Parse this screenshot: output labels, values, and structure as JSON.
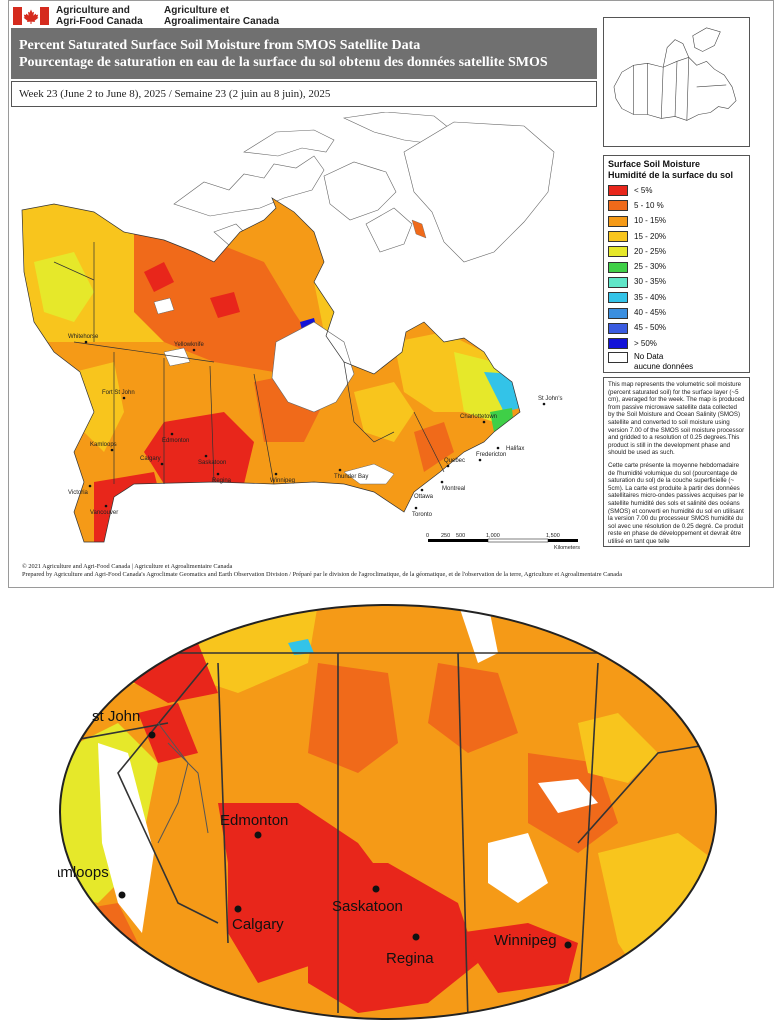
{
  "header": {
    "dept_en_1": "Agriculture and",
    "dept_en_2": "Agri-Food Canada",
    "dept_fr_1": "Agriculture et",
    "dept_fr_2": "Agroalimentaire Canada",
    "title_en": "Percent Saturated Surface Soil Moisture from SMOS Satellite Data",
    "title_fr": "Pourcentage de saturation en eau de la surface du sol obtenu des données satellite SMOS",
    "week": "Week 23 (June 2  to June 8), 2025 / Semaine 23 (2 juin au 8 juin), 2025",
    "flag_color": "#d52b1e",
    "title_bg": "#707070"
  },
  "legend": {
    "title_en": "Surface Soil Moisture",
    "title_fr": "Humidité de la surface du sol",
    "items": [
      {
        "label": "< 5%",
        "color": "#e8261b"
      },
      {
        "label": "5 - 10 %",
        "color": "#f06a1a"
      },
      {
        "label": "10 - 15%",
        "color": "#f59a17"
      },
      {
        "label": "15 - 20%",
        "color": "#f8c51d"
      },
      {
        "label": "20 - 25%",
        "color": "#e6e82a"
      },
      {
        "label": "25 - 30%",
        "color": "#3fcf47"
      },
      {
        "label": "30 - 35%",
        "color": "#5fe6c8"
      },
      {
        "label": "35 - 40%",
        "color": "#33c3e8"
      },
      {
        "label": "40 - 45%",
        "color": "#3b8fe0"
      },
      {
        "label": "45 - 50%",
        "color": "#3a5be0"
      },
      {
        "label": "> 50%",
        "color": "#1212d8"
      }
    ],
    "nodata_en": "No Data",
    "nodata_fr": "aucune données"
  },
  "description": {
    "en": "This map represents the volumetric soil moisture (percent saturated soil) for the surface layer (~5 cm), averaged for the week. The map is produced from passive microwave satellite data collected by the Soil Moisture and Ocean Salinity (SMOS) satellite and converted to soil moisture using version 7.00 of the SMOS soil moisture processor and gridded to a resolution of 0.25 degrees.This product is still in the development phase and should be used as such.",
    "fr": "Cette carte présente la moyenne hebdomadaire de l'humidité volumique du sol (pourcentage de saturation du sol) de la couche superficielle (~ 5cm). La carte est produite à partir des données satellitaires micro-ondes passives acquises par le satellite humidité des sols et salinité des océans (SMOS) et converti en humidité du sol en utilisant la version 7.00 du processeur SMOS humidité du sol avec une résolution de 0.25 degré. Ce produit reste en phase de développement et devrait être utilisé en tant que telle"
  },
  "map": {
    "cities": [
      "Whitehorse",
      "Yellowknife",
      "Fort St John",
      "Edmonton",
      "Kamloops",
      "Calgary",
      "Saskatoon",
      "Regina",
      "Winnipeg",
      "Victoria",
      "Vancouver",
      "Thunder Bay",
      "Toronto",
      "Ottawa",
      "Montreal",
      "Quebec",
      "Fredericton",
      "Charlottetown",
      "Halifax",
      "St John's"
    ],
    "scale_ticks": [
      "0",
      "250",
      "500",
      "1,000",
      "1,500"
    ],
    "scale_unit": "Kilometers"
  },
  "footer": {
    "line1": "© 2021 Agriculture and Agri-Food Canada | Agriculture et Agroalimentaire Canada",
    "line2": "Prepared by Agriculture and Agri-Food Canada's Agroclimate Geomatics and Earth Observation Division / Préparé par le division de l'agroclimatique, de la géomatique, et de l'observation de la terre, Agriculture et Agroalimentaire Canada"
  },
  "zoom": {
    "cities": [
      "st John",
      "Edmonton",
      "amloops",
      "Calgary",
      "Saskatoon",
      "Regina",
      "Winnipeg"
    ]
  }
}
